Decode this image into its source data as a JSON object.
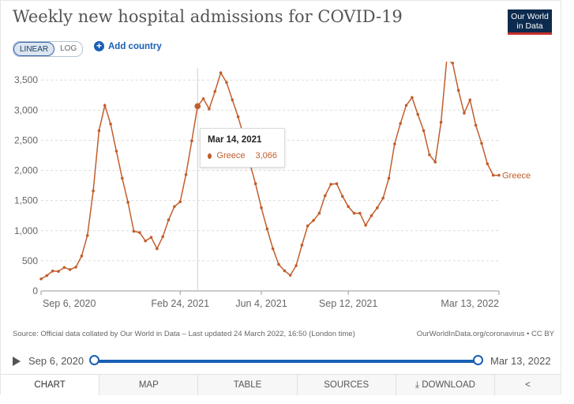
{
  "header": {
    "title": "Weekly new hospital admissions for COVID-19",
    "logo_line1": "Our World",
    "logo_line2": "in Data"
  },
  "controls": {
    "linear_label": "LINEAR",
    "log_label": "LOG",
    "add_country_label": "Add country"
  },
  "tooltip": {
    "date": "Mar 14, 2021",
    "series": "Greece",
    "value": "3,066"
  },
  "footer": {
    "source": "Source: Official data collated by Our World in Data – Last updated 24 March 2022, 16:50 (London time)",
    "url": "OurWorldInData.org/coronavirus • CC BY"
  },
  "timeline": {
    "start": "Sep 6, 2020",
    "end": "Mar 13, 2022"
  },
  "tabs": [
    "CHART",
    "MAP",
    "TABLE",
    "SOURCES",
    "DOWNLOAD"
  ],
  "colors": {
    "series": "#c15e2c",
    "accent": "#1a5fb4",
    "logo_bg": "#0c2b4e"
  },
  "chart_data": {
    "type": "line",
    "title": "Weekly new hospital admissions for COVID-19",
    "xlabel": "",
    "ylabel": "",
    "ylim": [
      0,
      3700
    ],
    "yticks": [
      0,
      500,
      1000,
      1500,
      2000,
      2500,
      3000,
      3500
    ],
    "ytick_labels": [
      "0",
      "500",
      "1,000",
      "1,500",
      "2,000",
      "2,500",
      "3,000",
      "3,500"
    ],
    "xticks": [
      0,
      24,
      38,
      53,
      79
    ],
    "xtick_labels": [
      "Sep 6, 2020",
      "Feb 24, 2021",
      "Jun 4, 2021",
      "Sep 12, 2021",
      "Mar 13, 2022"
    ],
    "grid": "horizontal dashed",
    "highlight_index": 27,
    "series": [
      {
        "name": "Greece",
        "values": [
          200,
          255,
          330,
          325,
          390,
          355,
          395,
          580,
          920,
          1660,
          2660,
          3080,
          2770,
          2320,
          1870,
          1470,
          990,
          970,
          830,
          890,
          700,
          900,
          1180,
          1400,
          1480,
          1930,
          2490,
          3066,
          3190,
          3020,
          3310,
          3620,
          3460,
          3170,
          2890,
          2550,
          2130,
          1780,
          1380,
          1030,
          700,
          440,
          335,
          260,
          420,
          760,
          1080,
          1170,
          1290,
          1580,
          1770,
          1780,
          1570,
          1400,
          1290,
          1290,
          1090,
          1250,
          1380,
          1540,
          1870,
          2440,
          2780,
          3080,
          3210,
          2930,
          2660,
          2260,
          2140,
          2800,
          3850,
          3780,
          3330,
          2950,
          3170,
          2750,
          2450,
          2110,
          1920,
          1920
        ]
      }
    ]
  }
}
